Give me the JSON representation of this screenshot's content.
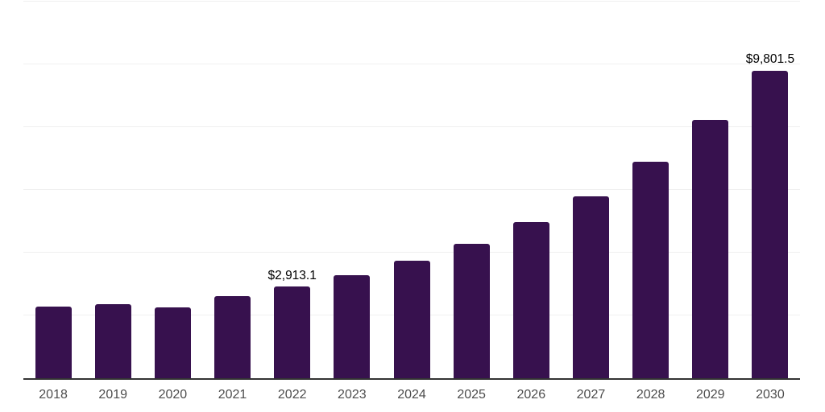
{
  "chart_data": {
    "type": "bar",
    "title": "",
    "xlabel": "",
    "ylabel": "",
    "categories": [
      "2018",
      "2019",
      "2020",
      "2021",
      "2022",
      "2023",
      "2024",
      "2025",
      "2026",
      "2027",
      "2028",
      "2029",
      "2030"
    ],
    "values": [
      2290,
      2360,
      2265,
      2620,
      2913.1,
      3285,
      3745,
      4285,
      4980,
      5800,
      6900,
      8235,
      9801.5
    ],
    "point_labels": [
      "",
      "",
      "",
      "",
      "$2,913.1",
      "",
      "",
      "",
      "",
      "",
      "",
      "",
      "$9,801.5"
    ],
    "ylim": [
      0,
      12000
    ],
    "y_grid_step": 2000,
    "grid": "horizontal",
    "y_tick_labels_visible": false,
    "legend_position": "none",
    "bar_color": "#37114e"
  },
  "colors": {
    "bar": "#37114e",
    "axis_line": "#333333",
    "gridline": "#f0f0f0",
    "x_tick_label": "#4d4d4d",
    "value_label": "#000000",
    "background": "#ffffff"
  }
}
